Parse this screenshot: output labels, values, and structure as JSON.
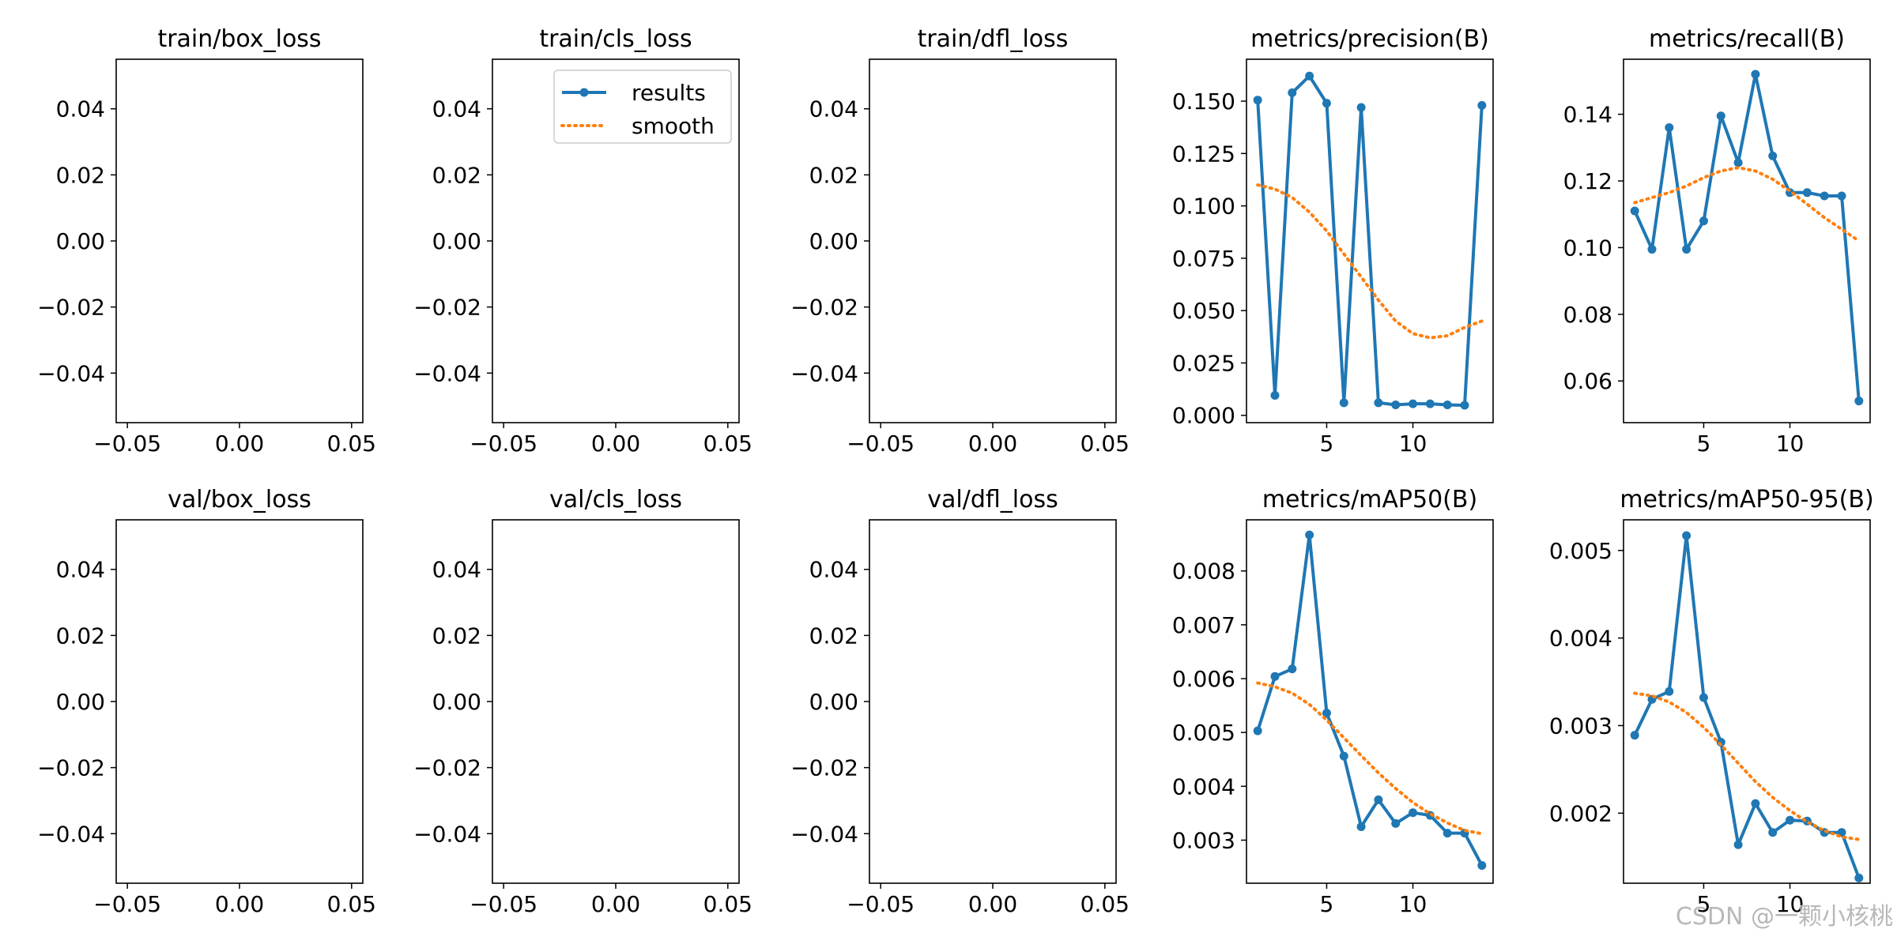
{
  "colors": {
    "results": "#1f77b4",
    "smooth": "#ff7f0e",
    "axes": "#000000"
  },
  "legend": {
    "location": "top-right of train/cls_loss panel",
    "entries": [
      "results",
      "smooth"
    ]
  },
  "watermark": "CSDN @一颗小核桃",
  "chart_data": [
    {
      "type": "line",
      "title": "train/box_loss",
      "empty": true,
      "xlim": [
        -0.055,
        0.055
      ],
      "ylim": [
        -0.055,
        0.055
      ],
      "xticks": [
        "−0.05",
        "0.00",
        "0.05"
      ],
      "xtick_values": [
        -0.05,
        0,
        0.05
      ],
      "yticks": [
        "−0.04",
        "−0.02",
        "0.00",
        "0.02",
        "0.04"
      ],
      "ytick_values": [
        -0.04,
        -0.02,
        0,
        0.02,
        0.04
      ]
    },
    {
      "type": "line",
      "title": "train/cls_loss",
      "empty": true,
      "legend": true,
      "xlim": [
        -0.055,
        0.055
      ],
      "ylim": [
        -0.055,
        0.055
      ],
      "xticks": [
        "−0.05",
        "0.00",
        "0.05"
      ],
      "xtick_values": [
        -0.05,
        0,
        0.05
      ],
      "yticks": [
        "−0.04",
        "−0.02",
        "0.00",
        "0.02",
        "0.04"
      ],
      "ytick_values": [
        -0.04,
        -0.02,
        0,
        0.02,
        0.04
      ]
    },
    {
      "type": "line",
      "title": "train/dfl_loss",
      "empty": true,
      "xlim": [
        -0.055,
        0.055
      ],
      "ylim": [
        -0.055,
        0.055
      ],
      "xticks": [
        "−0.05",
        "0.00",
        "0.05"
      ],
      "xtick_values": [
        -0.05,
        0,
        0.05
      ],
      "yticks": [
        "−0.04",
        "−0.02",
        "0.00",
        "0.02",
        "0.04"
      ],
      "ytick_values": [
        -0.04,
        -0.02,
        0,
        0.02,
        0.04
      ]
    },
    {
      "type": "line",
      "title": "metrics/precision(B)",
      "xlim": [
        0.35,
        14.65
      ],
      "ylim": [
        -0.0035,
        0.17
      ],
      "xticks": [
        "5",
        "10"
      ],
      "xtick_values": [
        5,
        10
      ],
      "yticks": [
        "0.000",
        "0.025",
        "0.050",
        "0.075",
        "0.100",
        "0.125",
        "0.150"
      ],
      "ytick_values": [
        0,
        0.025,
        0.05,
        0.075,
        0.1,
        0.125,
        0.15
      ],
      "series": [
        {
          "name": "results",
          "x": [
            1,
            2,
            3,
            4,
            5,
            6,
            7,
            8,
            9,
            10,
            11,
            12,
            13,
            14
          ],
          "y": [
            0.1505,
            0.0095,
            0.154,
            0.162,
            0.149,
            0.006,
            0.147,
            0.006,
            0.005,
            0.0055,
            0.0055,
            0.005,
            0.0048,
            0.148
          ]
        },
        {
          "name": "smooth",
          "x": [
            1,
            2,
            3,
            4,
            5,
            6,
            7,
            8,
            9,
            10,
            11,
            12,
            13,
            14
          ],
          "y": [
            0.11,
            0.108,
            0.104,
            0.097,
            0.088,
            0.077,
            0.066,
            0.055,
            0.045,
            0.039,
            0.037,
            0.038,
            0.042,
            0.045
          ]
        }
      ]
    },
    {
      "type": "line",
      "title": "metrics/recall(B)",
      "xlim": [
        0.35,
        14.65
      ],
      "ylim": [
        0.0475,
        0.1565
      ],
      "xticks": [
        "5",
        "10"
      ],
      "xtick_values": [
        5,
        10
      ],
      "yticks": [
        "0.06",
        "0.08",
        "0.10",
        "0.12",
        "0.14"
      ],
      "ytick_values": [
        0.06,
        0.08,
        0.1,
        0.12,
        0.14
      ],
      "series": [
        {
          "name": "results",
          "x": [
            1,
            2,
            3,
            4,
            5,
            6,
            7,
            8,
            9,
            10,
            11,
            12,
            13,
            14
          ],
          "y": [
            0.111,
            0.0995,
            0.136,
            0.0995,
            0.108,
            0.1395,
            0.1255,
            0.152,
            0.1275,
            0.1165,
            0.1165,
            0.1155,
            0.1155,
            0.054
          ]
        },
        {
          "name": "smooth",
          "x": [
            1,
            2,
            3,
            4,
            5,
            6,
            7,
            8,
            9,
            10,
            11,
            12,
            13,
            14
          ],
          "y": [
            0.1135,
            0.115,
            0.1165,
            0.1185,
            0.121,
            0.123,
            0.124,
            0.123,
            0.1205,
            0.117,
            0.113,
            0.109,
            0.1055,
            0.102
          ]
        }
      ]
    },
    {
      "type": "line",
      "title": "val/box_loss",
      "empty": true,
      "xlim": [
        -0.055,
        0.055
      ],
      "ylim": [
        -0.055,
        0.055
      ],
      "xticks": [
        "−0.05",
        "0.00",
        "0.05"
      ],
      "xtick_values": [
        -0.05,
        0,
        0.05
      ],
      "yticks": [
        "−0.04",
        "−0.02",
        "0.00",
        "0.02",
        "0.04"
      ],
      "ytick_values": [
        -0.04,
        -0.02,
        0,
        0.02,
        0.04
      ]
    },
    {
      "type": "line",
      "title": "val/cls_loss",
      "empty": true,
      "xlim": [
        -0.055,
        0.055
      ],
      "ylim": [
        -0.055,
        0.055
      ],
      "xticks": [
        "−0.05",
        "0.00",
        "0.05"
      ],
      "xtick_values": [
        -0.05,
        0,
        0.05
      ],
      "yticks": [
        "−0.04",
        "−0.02",
        "0.00",
        "0.02",
        "0.04"
      ],
      "ytick_values": [
        -0.04,
        -0.02,
        0,
        0.02,
        0.04
      ]
    },
    {
      "type": "line",
      "title": "val/dfl_loss",
      "empty": true,
      "xlim": [
        -0.055,
        0.055
      ],
      "ylim": [
        -0.055,
        0.055
      ],
      "xticks": [
        "−0.05",
        "0.00",
        "0.05"
      ],
      "xtick_values": [
        -0.05,
        0,
        0.05
      ],
      "yticks": [
        "−0.04",
        "−0.02",
        "0.00",
        "0.02",
        "0.04"
      ],
      "ytick_values": [
        -0.04,
        -0.02,
        0,
        0.02,
        0.04
      ]
    },
    {
      "type": "line",
      "title": "metrics/mAP50(B)",
      "xlim": [
        0.35,
        14.65
      ],
      "ylim": [
        0.0022,
        0.00895
      ],
      "xticks": [
        "5",
        "10"
      ],
      "xtick_values": [
        5,
        10
      ],
      "yticks": [
        "0.003",
        "0.004",
        "0.005",
        "0.006",
        "0.007",
        "0.008"
      ],
      "ytick_values": [
        0.003,
        0.004,
        0.005,
        0.006,
        0.007,
        0.008
      ],
      "series": [
        {
          "name": "results",
          "x": [
            1,
            2,
            3,
            4,
            5,
            6,
            7,
            8,
            9,
            10,
            11,
            12,
            13,
            14
          ],
          "y": [
            0.00503,
            0.00604,
            0.00618,
            0.00867,
            0.00536,
            0.00456,
            0.00325,
            0.00375,
            0.00331,
            0.00351,
            0.00346,
            0.00313,
            0.00313,
            0.00253
          ]
        },
        {
          "name": "smooth",
          "x": [
            1,
            2,
            3,
            4,
            5,
            6,
            7,
            8,
            9,
            10,
            11,
            12,
            13,
            14
          ],
          "y": [
            0.00592,
            0.00585,
            0.00573,
            0.00552,
            0.00523,
            0.0049,
            0.00457,
            0.00425,
            0.00396,
            0.0037,
            0.00349,
            0.00332,
            0.00318,
            0.00312
          ]
        }
      ]
    },
    {
      "type": "line",
      "title": "metrics/mAP50-95(B)",
      "xlim": [
        0.35,
        14.65
      ],
      "ylim": [
        0.0012,
        0.00535
      ],
      "xticks": [
        "5",
        "10"
      ],
      "xtick_values": [
        5,
        10
      ],
      "yticks": [
        "0.002",
        "0.003",
        "0.004",
        "0.005"
      ],
      "ytick_values": [
        0.002,
        0.003,
        0.004,
        0.005
      ],
      "series": [
        {
          "name": "results",
          "x": [
            1,
            2,
            3,
            4,
            5,
            6,
            7,
            8,
            9,
            10,
            11,
            12,
            13,
            14
          ],
          "y": [
            0.00289,
            0.0033,
            0.00339,
            0.00517,
            0.00332,
            0.00281,
            0.00164,
            0.00211,
            0.00178,
            0.00192,
            0.00191,
            0.00178,
            0.00178,
            0.00126
          ]
        },
        {
          "name": "smooth",
          "x": [
            1,
            2,
            3,
            4,
            5,
            6,
            7,
            8,
            9,
            10,
            11,
            12,
            13,
            14
          ],
          "y": [
            0.00337,
            0.00334,
            0.00327,
            0.00315,
            0.00298,
            0.00278,
            0.00257,
            0.00236,
            0.00218,
            0.00203,
            0.0019,
            0.0018,
            0.00173,
            0.0017
          ]
        }
      ]
    }
  ]
}
